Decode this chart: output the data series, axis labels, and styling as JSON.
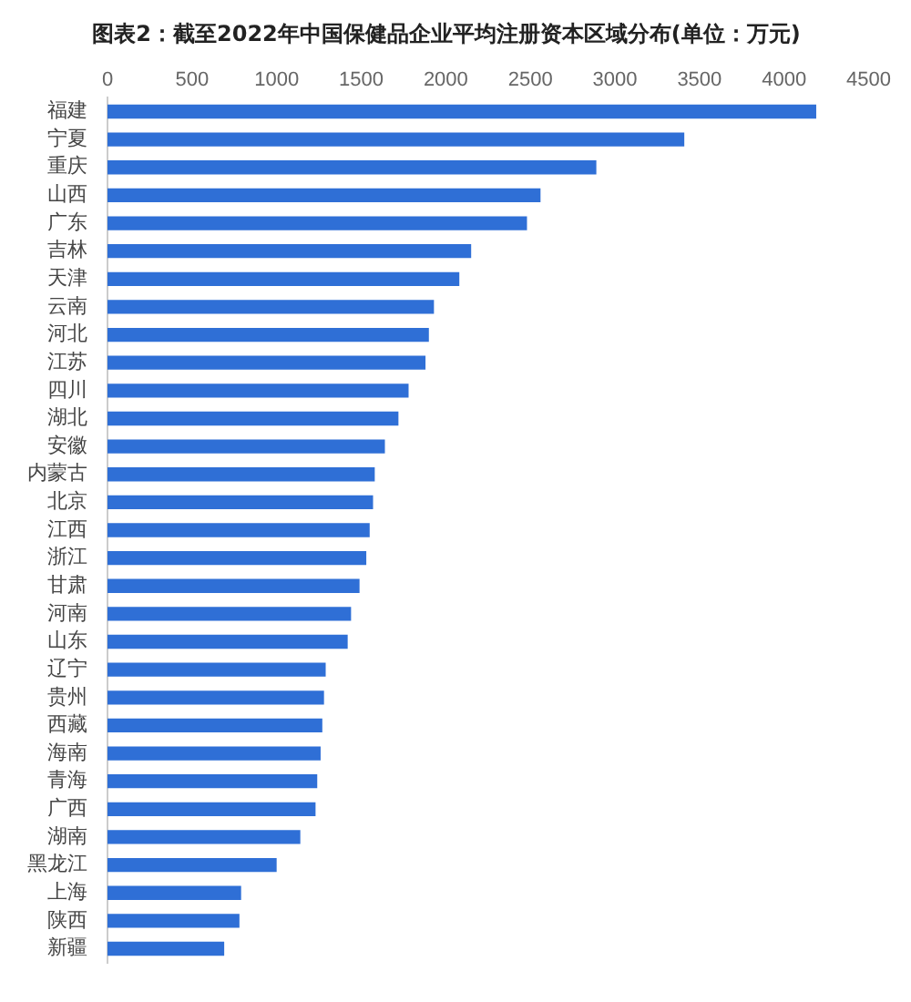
{
  "chart_data": {
    "type": "bar",
    "orientation": "horizontal",
    "title": "图表2：截至2022年中国保健品企业平均注册资本区域分布(单位：万元)",
    "categories": [
      "福建",
      "宁夏",
      "重庆",
      "山西",
      "广东",
      "吉林",
      "天津",
      "云南",
      "河北",
      "江苏",
      "四川",
      "湖北",
      "安徽",
      "内蒙古",
      "北京",
      "江西",
      "浙江",
      "甘肃",
      "河南",
      "山东",
      "辽宁",
      "贵州",
      "西藏",
      "海南",
      "青海",
      "广西",
      "湖南",
      "黑龙江",
      "上海",
      "陕西",
      "新疆"
    ],
    "values": [
      4190,
      3410,
      2890,
      2560,
      2480,
      2150,
      2080,
      1930,
      1900,
      1880,
      1780,
      1720,
      1640,
      1580,
      1570,
      1550,
      1530,
      1490,
      1440,
      1420,
      1290,
      1280,
      1270,
      1260,
      1240,
      1230,
      1140,
      1000,
      790,
      780,
      690
    ],
    "color": "#2f6fd6",
    "xlim": [
      0,
      4500
    ],
    "xticks": [
      0,
      500,
      1000,
      1500,
      2000,
      2500,
      3000,
      3500,
      4000,
      4500
    ],
    "grid": false,
    "legend": false
  }
}
